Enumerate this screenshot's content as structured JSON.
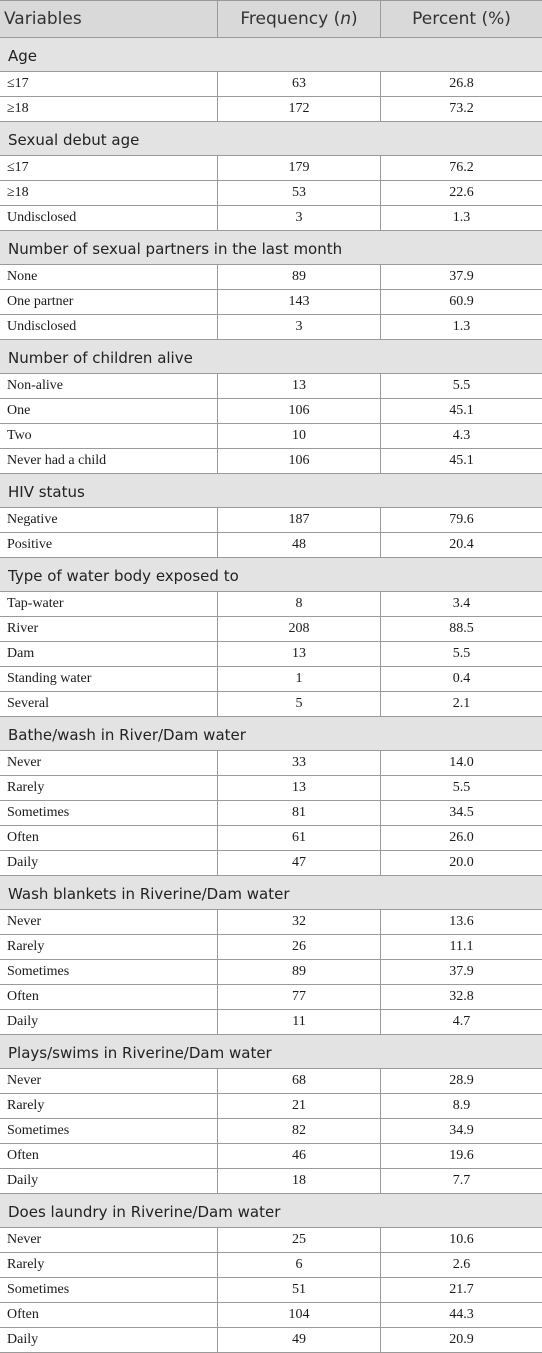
{
  "header": {
    "variables": "Variables",
    "frequency": "Frequency (",
    "frequency_n": "n",
    "frequency_close": ")",
    "percent": "Percent (%)"
  },
  "sections": [
    {
      "title": "Age",
      "rows": [
        {
          "label": "≤17",
          "frequency": "63",
          "percent": "26.8"
        },
        {
          "label": "≥18",
          "frequency": "172",
          "percent": "73.2"
        }
      ]
    },
    {
      "title": "Sexual debut age",
      "rows": [
        {
          "label": "≤17",
          "frequency": "179",
          "percent": "76.2"
        },
        {
          "label": "≥18",
          "frequency": "53",
          "percent": "22.6"
        },
        {
          "label": "Undisclosed",
          "frequency": "3",
          "percent": "1.3"
        }
      ]
    },
    {
      "title": "Number of sexual partners in the last month",
      "rows": [
        {
          "label": "None",
          "frequency": "89",
          "percent": "37.9"
        },
        {
          "label": "One partner",
          "frequency": "143",
          "percent": "60.9"
        },
        {
          "label": "Undisclosed",
          "frequency": "3",
          "percent": "1.3"
        }
      ]
    },
    {
      "title": "Number of children alive",
      "rows": [
        {
          "label": "Non-alive",
          "frequency": "13",
          "percent": "5.5"
        },
        {
          "label": "One",
          "frequency": "106",
          "percent": "45.1"
        },
        {
          "label": "Two",
          "frequency": "10",
          "percent": "4.3"
        },
        {
          "label": "Never had a child",
          "frequency": "106",
          "percent": "45.1"
        }
      ]
    },
    {
      "title": "HIV status",
      "rows": [
        {
          "label": "Negative",
          "frequency": "187",
          "percent": "79.6"
        },
        {
          "label": "Positive",
          "frequency": "48",
          "percent": "20.4"
        }
      ]
    },
    {
      "title": "Type of water body exposed to",
      "rows": [
        {
          "label": "Tap-water",
          "frequency": "8",
          "percent": "3.4"
        },
        {
          "label": "River",
          "frequency": "208",
          "percent": "88.5"
        },
        {
          "label": "Dam",
          "frequency": "13",
          "percent": "5.5"
        },
        {
          "label": "Standing water",
          "frequency": "1",
          "percent": "0.4"
        },
        {
          "label": "Several",
          "frequency": "5",
          "percent": "2.1"
        }
      ]
    },
    {
      "title": "Bathe/wash in River/Dam water",
      "rows": [
        {
          "label": "Never",
          "frequency": "33",
          "percent": "14.0"
        },
        {
          "label": "Rarely",
          "frequency": "13",
          "percent": "5.5"
        },
        {
          "label": "Sometimes",
          "frequency": "81",
          "percent": "34.5"
        },
        {
          "label": "Often",
          "frequency": "61",
          "percent": "26.0"
        },
        {
          "label": "Daily",
          "frequency": "47",
          "percent": "20.0"
        }
      ]
    },
    {
      "title": "Wash blankets in Riverine/Dam water",
      "rows": [
        {
          "label": "Never",
          "frequency": "32",
          "percent": "13.6"
        },
        {
          "label": "Rarely",
          "frequency": "26",
          "percent": "11.1"
        },
        {
          "label": "Sometimes",
          "frequency": "89",
          "percent": "37.9"
        },
        {
          "label": "Often",
          "frequency": "77",
          "percent": "32.8"
        },
        {
          "label": "Daily",
          "frequency": "11",
          "percent": "4.7"
        }
      ]
    },
    {
      "title": "Plays/swims in Riverine/Dam water",
      "rows": [
        {
          "label": "Never",
          "frequency": "68",
          "percent": "28.9"
        },
        {
          "label": "Rarely",
          "frequency": "21",
          "percent": "8.9"
        },
        {
          "label": "Sometimes",
          "frequency": "82",
          "percent": "34.9"
        },
        {
          "label": "Often",
          "frequency": "46",
          "percent": "19.6"
        },
        {
          "label": "Daily",
          "frequency": "18",
          "percent": "7.7"
        }
      ]
    },
    {
      "title": "Does laundry in Riverine/Dam water",
      "rows": [
        {
          "label": "Never",
          "frequency": "25",
          "percent": "10.6"
        },
        {
          "label": "Rarely",
          "frequency": "6",
          "percent": "2.6"
        },
        {
          "label": "Sometimes",
          "frequency": "51",
          "percent": "21.7"
        },
        {
          "label": "Often",
          "frequency": "104",
          "percent": "44.3"
        },
        {
          "label": "Daily",
          "frequency": "49",
          "percent": "20.9"
        }
      ]
    }
  ]
}
